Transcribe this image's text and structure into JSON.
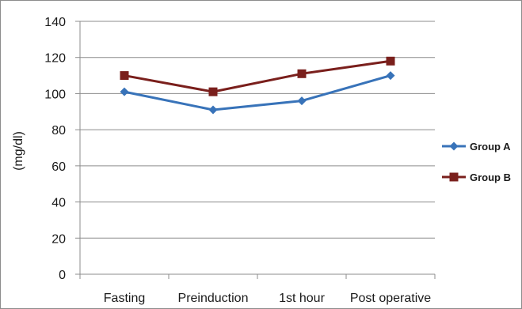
{
  "chart_data": {
    "type": "line",
    "title": "",
    "xlabel": "",
    "ylabel": "(mg/dl)",
    "ylim": [
      0,
      140
    ],
    "yticks": [
      0,
      20,
      40,
      60,
      80,
      100,
      120,
      140
    ],
    "categories": [
      "Fasting",
      "Preinduction",
      "1st hour",
      "Post operative"
    ],
    "grid": "horizontal",
    "legend_position": "right",
    "series": [
      {
        "name": "Group A",
        "values": [
          101,
          91,
          96,
          110
        ],
        "color": "#3873b9",
        "marker": "diamond"
      },
      {
        "name": "Group B",
        "values": [
          110,
          101,
          111,
          118
        ],
        "color": "#7a1f1c",
        "marker": "square"
      }
    ]
  }
}
